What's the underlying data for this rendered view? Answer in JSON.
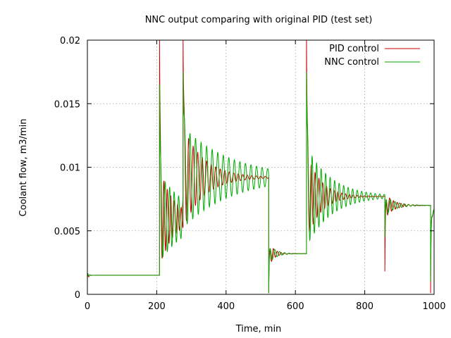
{
  "chart_data": {
    "type": "line",
    "title": "NNC output comparing with original PID (test set)",
    "xlabel": "Time, min",
    "ylabel": "Coolant flow, m3/min",
    "xlim": [
      0,
      1000
    ],
    "ylim": [
      0,
      0.02
    ],
    "xticks": [
      "0",
      "200",
      "400",
      "600",
      "800",
      "1000"
    ],
    "yticks": [
      "0",
      "0.005",
      "0.01",
      "0.015",
      "0.02"
    ],
    "grid": true,
    "legend_position": "top-right",
    "colors": {
      "PID control": "#cc0000",
      "NNC control": "#00aa00"
    },
    "series": [
      {
        "name": "PID control",
        "segments": [
          {
            "t0": 0,
            "t1": 208,
            "initial": 0.0012,
            "target": 0.0015,
            "amp": 0.0003,
            "decay": 4,
            "period": 6
          },
          {
            "t0": 208,
            "t1": 276,
            "initial": 0.0202,
            "target": 0.006,
            "amp": 0.004,
            "decay": 40,
            "period": 10
          },
          {
            "t0": 276,
            "t1": 523,
            "initial": 0.0202,
            "target": 0.0092,
            "amp": 0.004,
            "decay": 60,
            "period": 13
          },
          {
            "t0": 523,
            "t1": 632,
            "initial": 0.0001,
            "target": 0.0032,
            "amp": 0.001,
            "decay": 15,
            "period": 11
          },
          {
            "t0": 632,
            "t1": 858,
            "initial": 0.0202,
            "target": 0.0077,
            "amp": 0.0035,
            "decay": 40,
            "period": 11
          },
          {
            "t0": 858,
            "t1": 990,
            "initial": 0.0018,
            "target": 0.007,
            "amp": 0.001,
            "decay": 25,
            "period": 11
          },
          {
            "t0": 990,
            "t1": 1000,
            "initial": 0.0001,
            "target": 0.0066,
            "amp": 0.001,
            "decay": 4,
            "period": 8
          }
        ]
      },
      {
        "name": "NNC control",
        "segments": [
          {
            "t0": 0,
            "t1": 208,
            "initial": 0.0015,
            "target": 0.0015,
            "amp": 0.0002,
            "decay": 4,
            "period": 6
          },
          {
            "t0": 208,
            "t1": 276,
            "initial": 0.0165,
            "target": 0.006,
            "amp": 0.0035,
            "decay": 80,
            "period": 13
          },
          {
            "t0": 276,
            "t1": 523,
            "initial": 0.0175,
            "target": 0.0092,
            "amp": 0.004,
            "decay": 140,
            "period": 16
          },
          {
            "t0": 523,
            "t1": 632,
            "initial": 0.0001,
            "target": 0.0032,
            "amp": 0.0008,
            "decay": 20,
            "period": 14
          },
          {
            "t0": 632,
            "t1": 858,
            "initial": 0.0175,
            "target": 0.0077,
            "amp": 0.004,
            "decay": 70,
            "period": 13
          },
          {
            "t0": 858,
            "t1": 990,
            "initial": 0.0045,
            "target": 0.007,
            "amp": 0.0008,
            "decay": 30,
            "period": 13
          },
          {
            "t0": 990,
            "t1": 1000,
            "initial": 0.001,
            "target": 0.0066,
            "amp": 0.0008,
            "decay": 4,
            "period": 8
          }
        ]
      }
    ]
  }
}
